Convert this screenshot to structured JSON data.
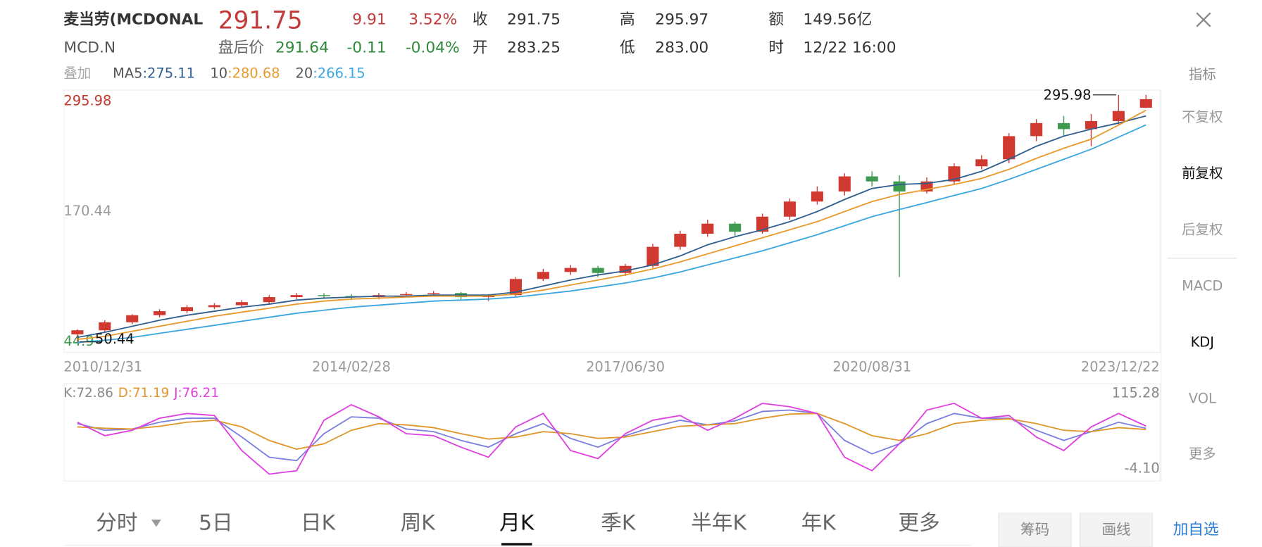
{
  "header": {
    "name": "麦当劳(MCDONAL",
    "symbol": "MCD.N",
    "price": "291.75",
    "change": "9.91",
    "change_pct": "3.52%",
    "after_hours_label": "盘后价",
    "after_hours_price": "291.64",
    "after_hours_change": "-0.11",
    "after_hours_pct": "-0.04%",
    "stats": [
      {
        "label": "收",
        "value": "291.75"
      },
      {
        "label": "开",
        "value": "283.25"
      },
      {
        "label": "高",
        "value": "295.97"
      },
      {
        "label": "低",
        "value": "283.00"
      },
      {
        "label": "额",
        "value": "149.56亿"
      },
      {
        "label": "时",
        "value": "12/22 16:00"
      }
    ]
  },
  "indicator_bar": {
    "overlay": "叠加",
    "indicator": "指标"
  },
  "side_menu": [
    "不复权",
    "前复权",
    "后复权",
    "MACD",
    "KDJ",
    "VOL",
    "更多"
  ],
  "tabs": [
    "分时",
    "5日",
    "日K",
    "周K",
    "月K",
    "季K",
    "半年K",
    "年K",
    "更多"
  ],
  "buttons": [
    "筹码",
    "画线",
    "加自选"
  ],
  "chart_data": [
    {
      "type": "candlestick",
      "up_color": "#d0392f",
      "down_color": "#3d9a4e",
      "categories": [
        "2010/12/31",
        null,
        null,
        null,
        null,
        null,
        null,
        null,
        null,
        null,
        "2014/02/28",
        null,
        null,
        null,
        null,
        null,
        null,
        null,
        null,
        null,
        "2017/06/30",
        null,
        null,
        null,
        null,
        null,
        null,
        null,
        null,
        "2020/08/31",
        null,
        null,
        null,
        null,
        null,
        null,
        null,
        null,
        null,
        "2023/12/22"
      ],
      "open": [
        58,
        62,
        70,
        77,
        81,
        85,
        87,
        90,
        95,
        97,
        96,
        95,
        97,
        98,
        99,
        95,
        97,
        113,
        120,
        124,
        119,
        126,
        145,
        158,
        168,
        160,
        175,
        190,
        200,
        215,
        210,
        200,
        210,
        225,
        232,
        255,
        268,
        262,
        270,
        283.25
      ],
      "high": [
        63,
        72,
        78,
        83,
        87,
        89,
        92,
        97,
        99,
        99,
        98,
        99,
        100,
        101,
        100,
        98,
        115,
        123,
        127,
        126,
        128,
        148,
        161,
        172,
        170,
        178,
        193,
        205,
        218,
        220,
        216,
        214,
        228,
        236,
        258,
        272,
        275,
        277,
        295.98,
        295.97
      ],
      "low": [
        50.44,
        60,
        68,
        75,
        79,
        83,
        85,
        88,
        93,
        94,
        92,
        93,
        95,
        96,
        92,
        91,
        95,
        111,
        117,
        115,
        116,
        124,
        142,
        155,
        156,
        158,
        172,
        187,
        196,
        205,
        115,
        198,
        207,
        222,
        228,
        250,
        255,
        245,
        266,
        283.0
      ],
      "close": [
        62,
        70,
        77,
        81,
        85,
        87,
        90,
        95,
        97,
        96,
        95,
        97,
        98,
        99,
        95,
        97,
        113,
        120,
        124,
        119,
        126,
        145,
        158,
        168,
        160,
        175,
        190,
        200,
        215,
        210,
        200,
        210,
        225,
        232,
        255,
        268,
        262,
        270,
        280,
        291.75
      ],
      "series": [
        {
          "name": "MA5",
          "legend_label": ":275.11",
          "color": "#2f5f8f",
          "values": [
            55,
            60,
            66,
            72,
            77,
            81,
            85,
            88,
            92,
            94,
            95,
            96,
            96,
            97,
            97,
            97,
            100,
            106,
            112,
            117,
            121,
            127,
            136,
            147,
            155,
            162,
            170,
            180,
            192,
            203,
            207,
            208,
            212,
            220,
            232,
            245,
            255,
            262,
            268,
            275.11
          ]
        },
        {
          "name": "10",
          "legend_label": ":280.68",
          "color": "#e89a2c",
          "values": [
            53,
            56,
            61,
            66,
            71,
            76,
            80,
            84,
            88,
            91,
            93,
            94,
            95,
            96,
            96,
            96,
            98,
            102,
            107,
            112,
            117,
            123,
            130,
            138,
            146,
            154,
            162,
            170,
            180,
            190,
            197,
            202,
            207,
            213,
            222,
            233,
            243,
            252,
            266,
            280.68
          ]
        },
        {
          "name": "20",
          "legend_label": ":266.15",
          "color": "#3aa6e0",
          "values": [
            50,
            52,
            55,
            59,
            63,
            67,
            71,
            75,
            79,
            82,
            85,
            87,
            89,
            91,
            92,
            93,
            95,
            98,
            101,
            105,
            109,
            114,
            120,
            127,
            134,
            141,
            149,
            157,
            166,
            175,
            182,
            189,
            196,
            203,
            212,
            222,
            232,
            242,
            254,
            266.15
          ]
        }
      ],
      "ylim": [
        44.9,
        295.98
      ],
      "yticks": [
        295.98,
        170.44,
        44.9
      ],
      "ytick_colors": [
        "#c0392b",
        "#999999",
        "#3d9a4e"
      ]
    },
    {
      "type": "line",
      "ylim": [
        -4.1,
        115.28
      ],
      "yticks": [
        115.28,
        {
          "value": -4.1,
          "label": "-4.10"
        }
      ],
      "series": [
        {
          "legend_label": "K:72.86",
          "color": "#7b7fe0",
          "values": [
            80,
            70,
            72,
            82,
            88,
            88,
            60,
            30,
            25,
            65,
            90,
            88,
            72,
            68,
            55,
            45,
            65,
            80,
            58,
            45,
            62,
            75,
            85,
            78,
            84,
            98,
            100,
            95,
            55,
            35,
            50,
            80,
            95,
            88,
            88,
            70,
            55,
            68,
            82,
            72.86
          ]
        },
        {
          "legend_label": "D:71.19",
          "color": "#e0962a",
          "values": [
            75,
            73,
            72,
            76,
            82,
            85,
            75,
            55,
            42,
            50,
            70,
            80,
            78,
            74,
            65,
            57,
            60,
            68,
            65,
            58,
            60,
            68,
            76,
            78,
            80,
            88,
            94,
            95,
            80,
            62,
            55,
            65,
            80,
            85,
            87,
            80,
            70,
            68,
            74,
            71.19
          ]
        },
        {
          "legend_label": "J:76.21",
          "color": "#e040e0",
          "values": [
            82,
            62,
            70,
            88,
            95,
            92,
            40,
            5,
            10,
            85,
            108,
            90,
            65,
            62,
            45,
            30,
            75,
            95,
            40,
            28,
            65,
            85,
            92,
            70,
            88,
            110,
            105,
            95,
            30,
            10,
            50,
            100,
            110,
            88,
            92,
            60,
            40,
            75,
            95,
            76.21
          ]
        }
      ]
    }
  ]
}
